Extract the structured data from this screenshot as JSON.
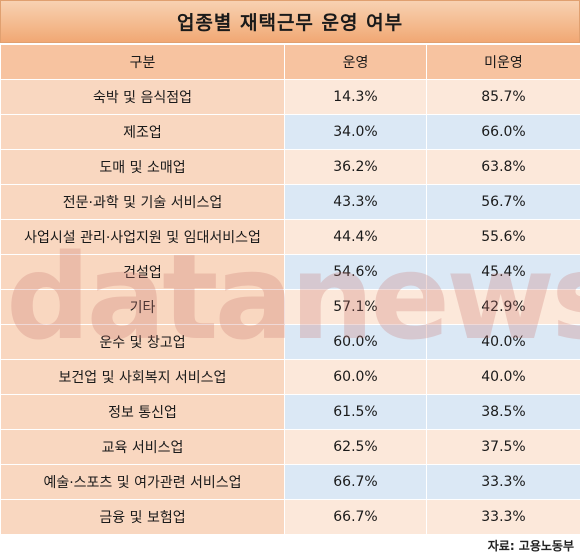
{
  "title": "업종별 재택근무 운영 여부",
  "source": "자료: 고용노동부",
  "watermark": "datanews",
  "chart_data": {
    "type": "table",
    "columns": [
      "구분",
      "운영",
      "미운영"
    ],
    "rows": [
      {
        "category": "숙박 및 음식점업",
        "operating": "14.3%",
        "not_operating": "85.7%"
      },
      {
        "category": "제조업",
        "operating": "34.0%",
        "not_operating": "66.0%"
      },
      {
        "category": "도매 및 소매업",
        "operating": "36.2%",
        "not_operating": "63.8%"
      },
      {
        "category": "전문·과학 및 기술 서비스업",
        "operating": "43.3%",
        "not_operating": "56.7%"
      },
      {
        "category": "사업시설 관리·사업지원 및 임대서비스업",
        "operating": "44.4%",
        "not_operating": "55.6%"
      },
      {
        "category": "건설업",
        "operating": "54.6%",
        "not_operating": "45.4%"
      },
      {
        "category": "기타",
        "operating": "57.1%",
        "not_operating": "42.9%"
      },
      {
        "category": "운수 및 창고업",
        "operating": "60.0%",
        "not_operating": "40.0%"
      },
      {
        "category": "보건업 및 사회복지 서비스업",
        "operating": "60.0%",
        "not_operating": "40.0%"
      },
      {
        "category": "정보 통신업",
        "operating": "61.5%",
        "not_operating": "38.5%"
      },
      {
        "category": "교육 서비스업",
        "operating": "62.5%",
        "not_operating": "37.5%"
      },
      {
        "category": "예술·스포츠 및 여가관련 서비스업",
        "operating": "66.7%",
        "not_operating": "33.3%"
      },
      {
        "category": "금융 및 보험업",
        "operating": "66.7%",
        "not_operating": "33.3%"
      }
    ]
  }
}
